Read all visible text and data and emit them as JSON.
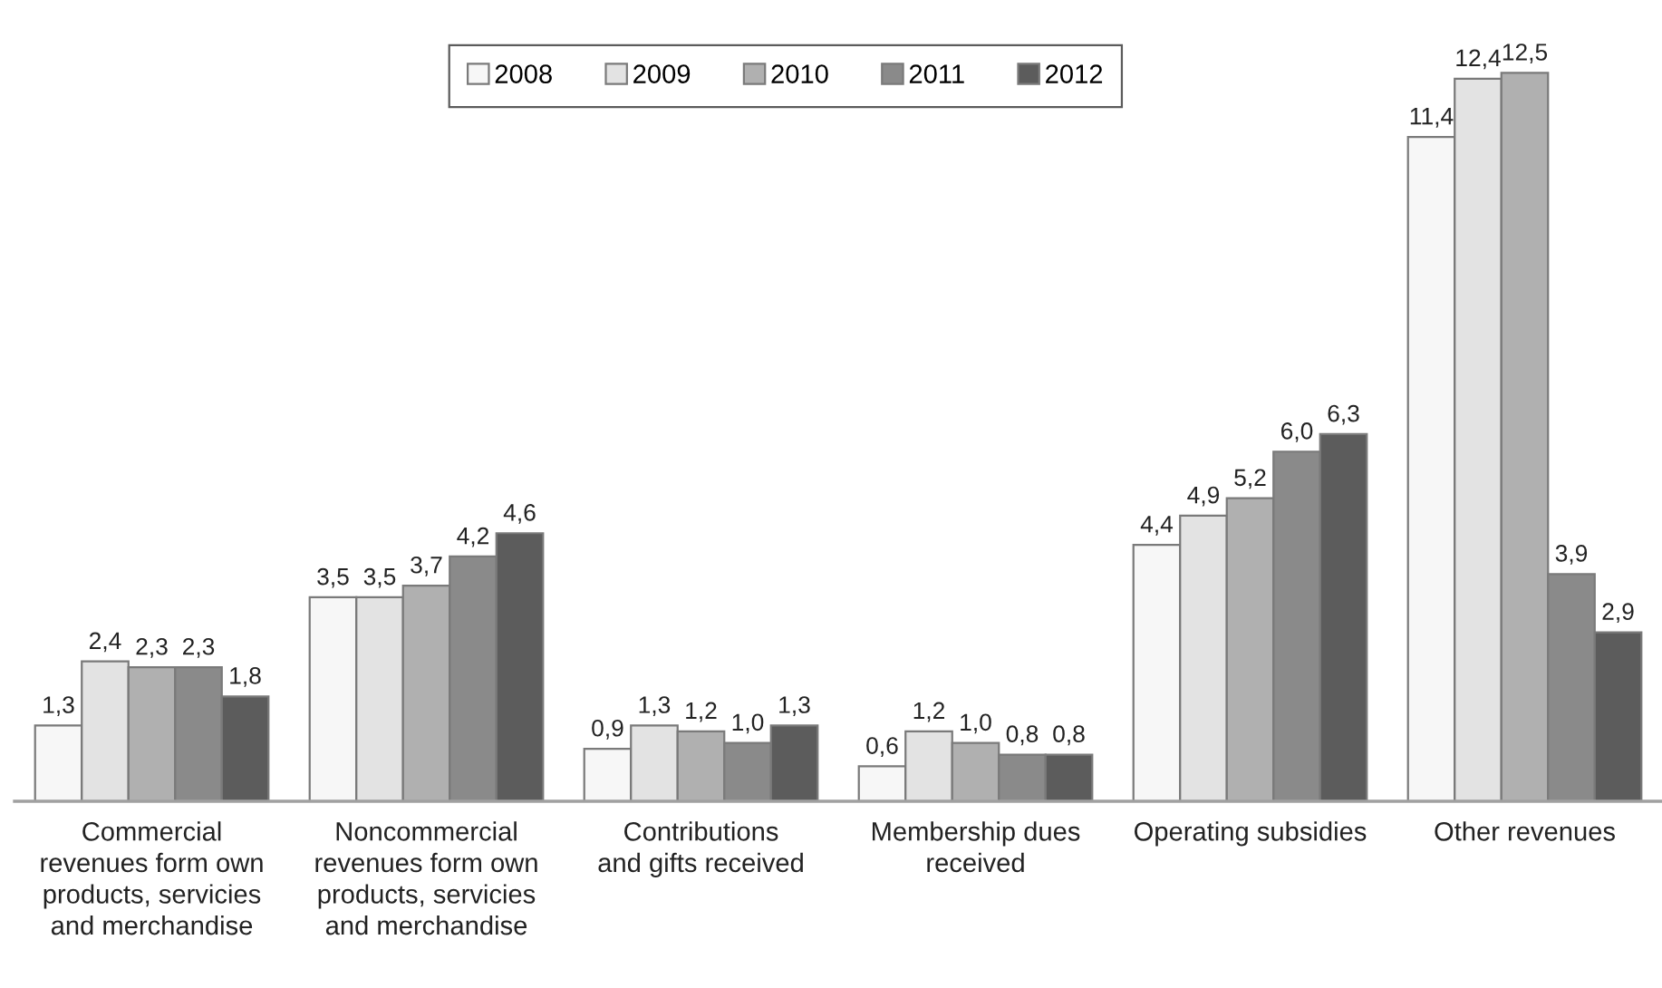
{
  "chart_data": {
    "type": "bar",
    "categories": [
      "Commercial\nrevenues form own\nproducts, servicies\nand merchandise",
      "Noncommercial\nrevenues form own\nproducts, servicies\nand merchandise",
      "Contributions\nand gifts received",
      "Membership dues\nreceived",
      "Operating subsidies",
      "Other revenues"
    ],
    "series": [
      {
        "name": "2008",
        "color": "#f7f7f7",
        "values": [
          1.3,
          3.5,
          0.9,
          0.6,
          4.4,
          11.4
        ],
        "value_labels": [
          "1,3",
          "3,5",
          "0,9",
          "0,6",
          "4,4",
          "11,4"
        ]
      },
      {
        "name": "2009",
        "color": "#e3e3e3",
        "values": [
          2.4,
          3.5,
          1.3,
          1.2,
          4.9,
          12.4
        ],
        "value_labels": [
          "2,4",
          "3,5",
          "1,3",
          "1,2",
          "4,9",
          "12,4"
        ]
      },
      {
        "name": "2010",
        "color": "#b0b0b0",
        "values": [
          2.3,
          3.7,
          1.2,
          1.0,
          5.2,
          12.5
        ],
        "value_labels": [
          "2,3",
          "3,7",
          "1,2",
          "1,0",
          "5,2",
          "12,5"
        ]
      },
      {
        "name": "2011",
        "color": "#8a8a8a",
        "values": [
          2.3,
          4.2,
          1.0,
          0.8,
          6.0,
          3.9
        ],
        "value_labels": [
          "2,3",
          "4,2",
          "1,0",
          "0,8",
          "6,0",
          "3,9"
        ]
      },
      {
        "name": "2012",
        "color": "#5c5c5c",
        "values": [
          1.8,
          4.6,
          1.3,
          0.8,
          6.3,
          2.9
        ],
        "value_labels": [
          "1,8",
          "4,6",
          "1,3",
          "0,8",
          "6,3",
          "2,9"
        ]
      }
    ],
    "legend": "top",
    "tick_labels": "x"
  }
}
